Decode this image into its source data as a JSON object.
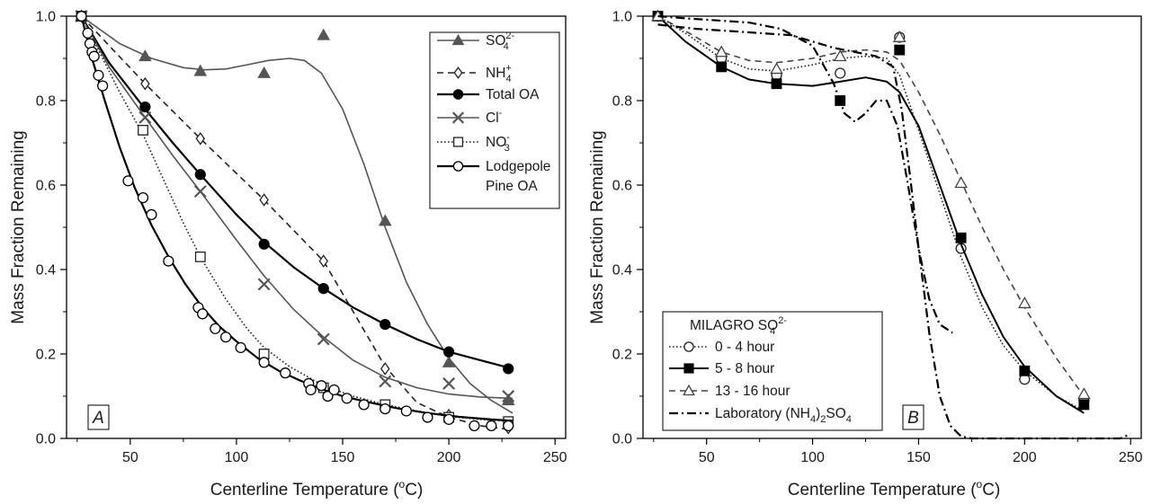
{
  "chart_data": [
    {
      "type": "scatter",
      "panel_label": "A",
      "xlabel": "Centerline Temperature (°C)",
      "ylabel": "Mass Fraction Remaining",
      "xlim": [
        20,
        255
      ],
      "ylim": [
        0,
        1.0
      ],
      "xticks": [
        "50",
        "100",
        "150",
        "200",
        "250"
      ],
      "yticks": [
        "0.0",
        "0.2",
        "0.4",
        "0.6",
        "0.8",
        "1.0"
      ],
      "legend": "top-right",
      "series": [
        {
          "name": "SO4 2-",
          "marker": "triangle-filled",
          "line": "solid",
          "color": "#555555",
          "width": 1.6,
          "x": [
            27,
            57,
            83,
            113,
            141,
            170,
            200,
            228
          ],
          "y": [
            1.0,
            0.905,
            0.87,
            0.865,
            0.955,
            0.515,
            0.18,
            0.09
          ],
          "fit_x": [
            27,
            45,
            60,
            75,
            85,
            95,
            105,
            115,
            125,
            132,
            140,
            150,
            160,
            170,
            180,
            190,
            200,
            210,
            220,
            230
          ],
          "fit_y": [
            1.0,
            0.935,
            0.9,
            0.878,
            0.873,
            0.875,
            0.885,
            0.895,
            0.9,
            0.895,
            0.865,
            0.78,
            0.65,
            0.5,
            0.37,
            0.27,
            0.19,
            0.13,
            0.09,
            0.06
          ]
        },
        {
          "name": "NH4 +",
          "marker": "diamond-open",
          "line": "dashed",
          "color": "#222222",
          "width": 1.6,
          "x": [
            27,
            57,
            83,
            113,
            141,
            170,
            200,
            228
          ],
          "y": [
            1.0,
            0.84,
            0.71,
            0.565,
            0.42,
            0.165,
            0.055,
            0.025
          ],
          "fit_x": [
            27,
            57,
            83,
            113,
            141,
            155,
            170,
            185,
            200,
            215,
            230
          ],
          "fit_y": [
            1.0,
            0.84,
            0.71,
            0.565,
            0.42,
            0.3,
            0.17,
            0.085,
            0.05,
            0.03,
            0.02
          ]
        },
        {
          "name": "Total OA",
          "marker": "circle-filled",
          "line": "solid",
          "color": "#000000",
          "width": 2.2,
          "x": [
            27,
            57,
            83,
            113,
            141,
            170,
            200,
            228
          ],
          "y": [
            1.0,
            0.785,
            0.625,
            0.46,
            0.355,
            0.27,
            0.205,
            0.165
          ],
          "fit_x": [
            27,
            40,
            57,
            70,
            83,
            100,
            113,
            127,
            141,
            155,
            170,
            185,
            200,
            215,
            230
          ],
          "fit_y": [
            1.0,
            0.89,
            0.78,
            0.7,
            0.625,
            0.53,
            0.465,
            0.405,
            0.355,
            0.31,
            0.27,
            0.235,
            0.205,
            0.185,
            0.165
          ]
        },
        {
          "name": "Cl -",
          "marker": "x",
          "line": "solid",
          "color": "#555555",
          "width": 1.6,
          "x": [
            27,
            57,
            83,
            113,
            141,
            170,
            200,
            228
          ],
          "y": [
            1.0,
            0.76,
            0.585,
            0.365,
            0.235,
            0.135,
            0.13,
            0.1
          ],
          "fit_x": [
            27,
            40,
            57,
            70,
            83,
            100,
            113,
            127,
            141,
            155,
            170,
            185,
            200,
            215,
            230
          ],
          "fit_y": [
            1.0,
            0.88,
            0.76,
            0.67,
            0.585,
            0.47,
            0.385,
            0.305,
            0.24,
            0.185,
            0.145,
            0.12,
            0.105,
            0.098,
            0.095
          ]
        },
        {
          "name": "NO3 -",
          "marker": "square-open",
          "line": "dotted",
          "color": "#222222",
          "width": 1.6,
          "x": [
            27,
            56,
            83,
            113,
            141,
            170,
            200,
            228
          ],
          "y": [
            1.0,
            0.73,
            0.43,
            0.2,
            0.12,
            0.08,
            0.05,
            0.04
          ],
          "fit_x": [
            27,
            35,
            45,
            56,
            65,
            75,
            83,
            95,
            105,
            113,
            125,
            141,
            155,
            170,
            185,
            200,
            215,
            230
          ],
          "fit_y": [
            1.0,
            0.92,
            0.82,
            0.72,
            0.62,
            0.51,
            0.43,
            0.33,
            0.26,
            0.215,
            0.17,
            0.125,
            0.1,
            0.08,
            0.065,
            0.052,
            0.045,
            0.04
          ]
        },
        {
          "name": "Lodgepole Pine OA",
          "marker": "circle-open",
          "line": "solid",
          "color": "#000000",
          "width": 2.2,
          "x": [
            27,
            30,
            31,
            32,
            33,
            35,
            37,
            49,
            56,
            60,
            68,
            82,
            84,
            90,
            95,
            102,
            113,
            123,
            134,
            135,
            140,
            143,
            146,
            152,
            160,
            170,
            180,
            190,
            200,
            212,
            220,
            228
          ],
          "y": [
            1.0,
            0.96,
            0.935,
            0.915,
            0.905,
            0.86,
            0.835,
            0.61,
            0.57,
            0.53,
            0.42,
            0.31,
            0.295,
            0.26,
            0.24,
            0.215,
            0.18,
            0.155,
            0.13,
            0.115,
            0.125,
            0.1,
            0.115,
            0.095,
            0.08,
            0.07,
            0.065,
            0.05,
            0.045,
            0.03,
            0.03,
            0.03
          ],
          "fit_x": [
            27,
            32,
            38,
            45,
            52,
            60,
            68,
            76,
            84,
            92,
            100,
            110,
            120,
            130,
            140,
            150,
            160,
            175,
            190,
            205,
            220,
            230
          ],
          "fit_y": [
            1.0,
            0.9,
            0.8,
            0.69,
            0.595,
            0.505,
            0.43,
            0.365,
            0.31,
            0.265,
            0.23,
            0.19,
            0.16,
            0.137,
            0.117,
            0.1,
            0.088,
            0.072,
            0.06,
            0.051,
            0.045,
            0.042
          ]
        }
      ]
    },
    {
      "type": "scatter",
      "panel_label": "B",
      "xlabel": "Centerline Temperature (°C)",
      "ylabel": "Mass Fraction Remaining",
      "xlim": [
        20,
        255
      ],
      "ylim": [
        0,
        1.0
      ],
      "xticks": [
        "50",
        "100",
        "150",
        "200",
        "250"
      ],
      "yticks": [
        "0.0",
        "0.2",
        "0.4",
        "0.6",
        "0.8",
        "1.0"
      ],
      "legend": "bottom-left",
      "legend_title": "MILAGRO SO4 2-",
      "series": [
        {
          "name": "0 - 4 hour",
          "marker": "circle-open",
          "line": "dotted",
          "color": "#222222",
          "width": 1.6,
          "x": [
            27,
            57,
            83,
            113,
            141,
            170,
            200,
            228
          ],
          "y": [
            1.0,
            0.9,
            0.86,
            0.865,
            0.95,
            0.45,
            0.14,
            0.09
          ],
          "fit_x": [
            27,
            40,
            57,
            70,
            83,
            100,
            113,
            125,
            135,
            141,
            150,
            160,
            170,
            180,
            190,
            200,
            215,
            228
          ],
          "fit_y": [
            1.0,
            0.96,
            0.9,
            0.875,
            0.87,
            0.885,
            0.9,
            0.905,
            0.9,
            0.86,
            0.73,
            0.58,
            0.43,
            0.31,
            0.22,
            0.16,
            0.1,
            0.065
          ]
        },
        {
          "name": "5 - 8 hour",
          "marker": "square-filled",
          "line": "solid",
          "color": "#000000",
          "width": 2.0,
          "x": [
            27,
            57,
            83,
            113,
            141,
            170,
            200,
            228
          ],
          "y": [
            1.0,
            0.88,
            0.84,
            0.8,
            0.92,
            0.475,
            0.16,
            0.08
          ],
          "fit_x": [
            27,
            40,
            57,
            70,
            83,
            100,
            113,
            125,
            135,
            141,
            150,
            160,
            170,
            180,
            190,
            200,
            215,
            228
          ],
          "fit_y": [
            1.0,
            0.94,
            0.88,
            0.85,
            0.84,
            0.835,
            0.845,
            0.855,
            0.845,
            0.82,
            0.74,
            0.6,
            0.46,
            0.34,
            0.24,
            0.17,
            0.1,
            0.06
          ]
        },
        {
          "name": "13 - 16 hour",
          "marker": "triangle-open",
          "line": "dashed",
          "color": "#444444",
          "width": 1.6,
          "x": [
            27,
            57,
            83,
            113,
            141,
            170,
            200,
            228
          ],
          "y": [
            1.0,
            0.915,
            0.875,
            0.905,
            0.95,
            0.605,
            0.32,
            0.105
          ],
          "fit_x": [
            27,
            40,
            57,
            70,
            83,
            100,
            113,
            125,
            135,
            141,
            150,
            160,
            170,
            180,
            190,
            200,
            215,
            228
          ],
          "fit_y": [
            1.0,
            0.965,
            0.915,
            0.895,
            0.89,
            0.9,
            0.915,
            0.92,
            0.915,
            0.895,
            0.82,
            0.72,
            0.61,
            0.5,
            0.4,
            0.31,
            0.19,
            0.1
          ]
        },
        {
          "name": "Laboratory (NH4)2SO4",
          "marker": "none",
          "line": "dashdot",
          "color": "#000000",
          "width": 2.2,
          "x": [],
          "y": [],
          "fit_x": [
            27,
            40,
            55,
            70,
            85,
            100,
            110,
            115,
            120,
            125,
            130,
            135,
            140,
            145,
            150,
            155,
            160,
            163,
            166
          ],
          "fit_y": [
            1.0,
            0.995,
            0.99,
            0.985,
            0.97,
            0.93,
            0.84,
            0.77,
            0.75,
            0.77,
            0.8,
            0.8,
            0.74,
            0.6,
            0.45,
            0.33,
            0.27,
            0.26,
            0.25
          ],
          "fit2_x": [
            27,
            45,
            60,
            75,
            90,
            100,
            110,
            120,
            130,
            138,
            142,
            146,
            150,
            155,
            160,
            165,
            170,
            175,
            180,
            190,
            200,
            215,
            230,
            245,
            250
          ],
          "fit2_y": [
            0.98,
            0.97,
            0.965,
            0.96,
            0.955,
            0.94,
            0.925,
            0.915,
            0.905,
            0.88,
            0.78,
            0.62,
            0.45,
            0.25,
            0.1,
            0.03,
            0.005,
            0.0,
            0.0,
            0.0,
            0.0,
            0.0,
            0.0,
            0.0,
            0.01
          ]
        }
      ]
    }
  ],
  "text": {
    "xlabel_prefix": "Centerline Temperature (",
    "xlabel_sup": "o",
    "xlabel_suffix": "C)",
    "ylabel": "Mass Fraction Remaining",
    "panel_a": "A",
    "panel_b": "B",
    "legend_a": [
      {
        "base": "SO",
        "sub": "4",
        "sup": "2-",
        "rest": ""
      },
      {
        "base": "NH",
        "sub": "4",
        "sup": "+",
        "rest": ""
      },
      {
        "base": "Total OA",
        "sub": "",
        "sup": "",
        "rest": ""
      },
      {
        "base": "Cl",
        "sub": "",
        "sup": "-",
        "rest": ""
      },
      {
        "base": "NO",
        "sub": "3",
        "sup": "-",
        "rest": ""
      },
      {
        "base": "Lodgepole",
        "sub": "",
        "sup": "",
        "rest": ""
      },
      {
        "base": "Pine OA",
        "sub": "",
        "sup": "",
        "rest": ""
      }
    ],
    "legend_b_title": {
      "base": "MILAGRO SO",
      "sub": "4",
      "sup": "2-"
    },
    "legend_b": [
      {
        "text": "0 - 4 hour"
      },
      {
        "text": "5 - 8 hour"
      },
      {
        "text": "13 - 16 hour"
      },
      {
        "pre": "Laboratory (NH",
        "sub": "4",
        "post": ")",
        "sub2": "2",
        "post2": "SO",
        "sub3": "4"
      }
    ]
  }
}
